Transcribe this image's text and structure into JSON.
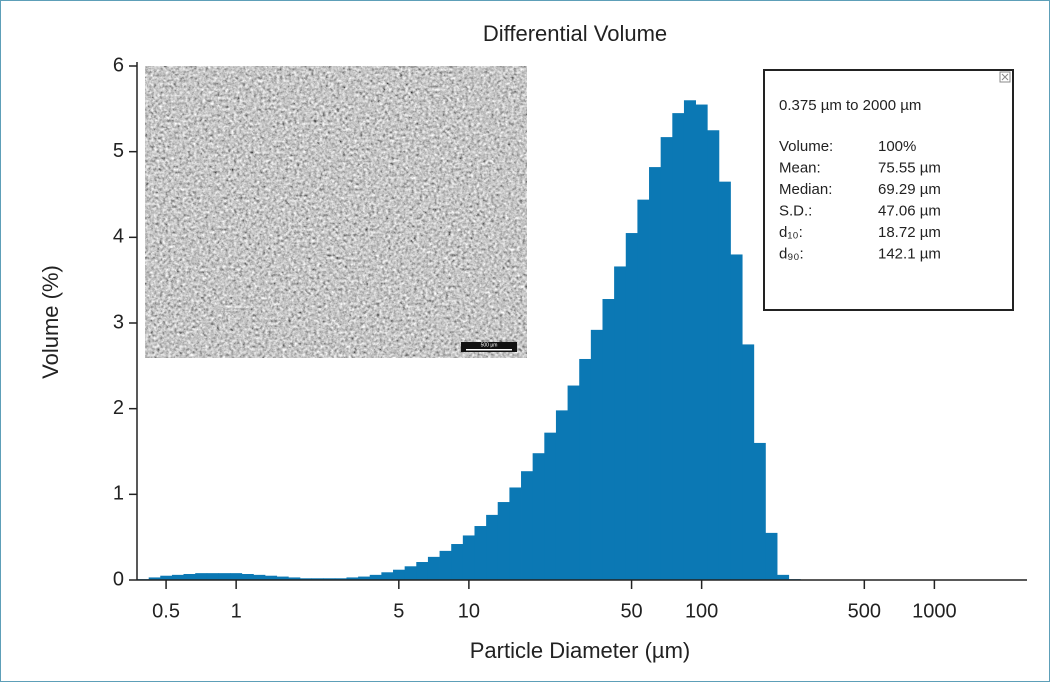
{
  "chart_data": {
    "type": "histogram",
    "title": "Differential Volume",
    "xlabel": "Particle Diameter (µm)",
    "ylabel": "Volume (%)",
    "xscale": "log",
    "color": "#0b78b4",
    "xlim": [
      0.375,
      2500
    ],
    "ylim": [
      0,
      6
    ],
    "xticks": [
      0.5,
      1,
      5,
      10,
      50,
      100,
      500,
      1000
    ],
    "yticks": [
      0,
      1,
      2,
      3,
      4,
      5,
      6
    ],
    "bins": [
      0.375,
      0.421,
      0.472,
      0.53,
      0.594,
      0.667,
      0.748,
      0.839,
      0.942,
      1.057,
      1.186,
      1.33,
      1.493,
      1.675,
      1.879,
      2.109,
      2.366,
      2.655,
      2.979,
      3.342,
      3.75,
      4.207,
      4.721,
      5.297,
      5.943,
      6.668,
      7.482,
      8.395,
      9.419,
      10.57,
      11.86,
      13.3,
      14.93,
      16.75,
      18.79,
      21.09,
      23.66,
      26.55,
      29.79,
      33.42,
      37.5,
      42.07,
      47.21,
      52.97,
      59.43,
      66.68,
      74.82,
      83.95,
      94.19,
      105.7,
      118.6,
      133.0,
      149.3,
      167.5,
      187.9,
      210.9,
      236.6,
      265.5,
      297.9
    ],
    "values": [
      0.01,
      0.03,
      0.05,
      0.06,
      0.07,
      0.08,
      0.08,
      0.08,
      0.08,
      0.07,
      0.06,
      0.05,
      0.04,
      0.03,
      0.02,
      0.02,
      0.02,
      0.02,
      0.03,
      0.04,
      0.06,
      0.09,
      0.12,
      0.16,
      0.21,
      0.27,
      0.34,
      0.42,
      0.52,
      0.63,
      0.76,
      0.91,
      1.08,
      1.27,
      1.48,
      1.72,
      1.98,
      2.27,
      2.58,
      2.92,
      3.28,
      3.66,
      4.05,
      4.44,
      4.82,
      5.17,
      5.45,
      5.6,
      5.55,
      5.25,
      4.65,
      3.8,
      2.75,
      1.6,
      0.55,
      0.06,
      0.01,
      0
    ],
    "inset_scale_label": "500 µm",
    "stats": {
      "range": "0.375 µm to 2000 µm",
      "rows": [
        {
          "label": "Volume:",
          "value": "100%"
        },
        {
          "label": "Mean:",
          "value": "75.55 µm"
        },
        {
          "label": "Median:",
          "value": "69.29 µm"
        },
        {
          "label": "S.D.:",
          "value": "47.06 µm"
        },
        {
          "label": "d₁₀:",
          "value": "18.72 µm"
        },
        {
          "label": "d₉₀:",
          "value": "142.1 µm"
        }
      ]
    }
  }
}
